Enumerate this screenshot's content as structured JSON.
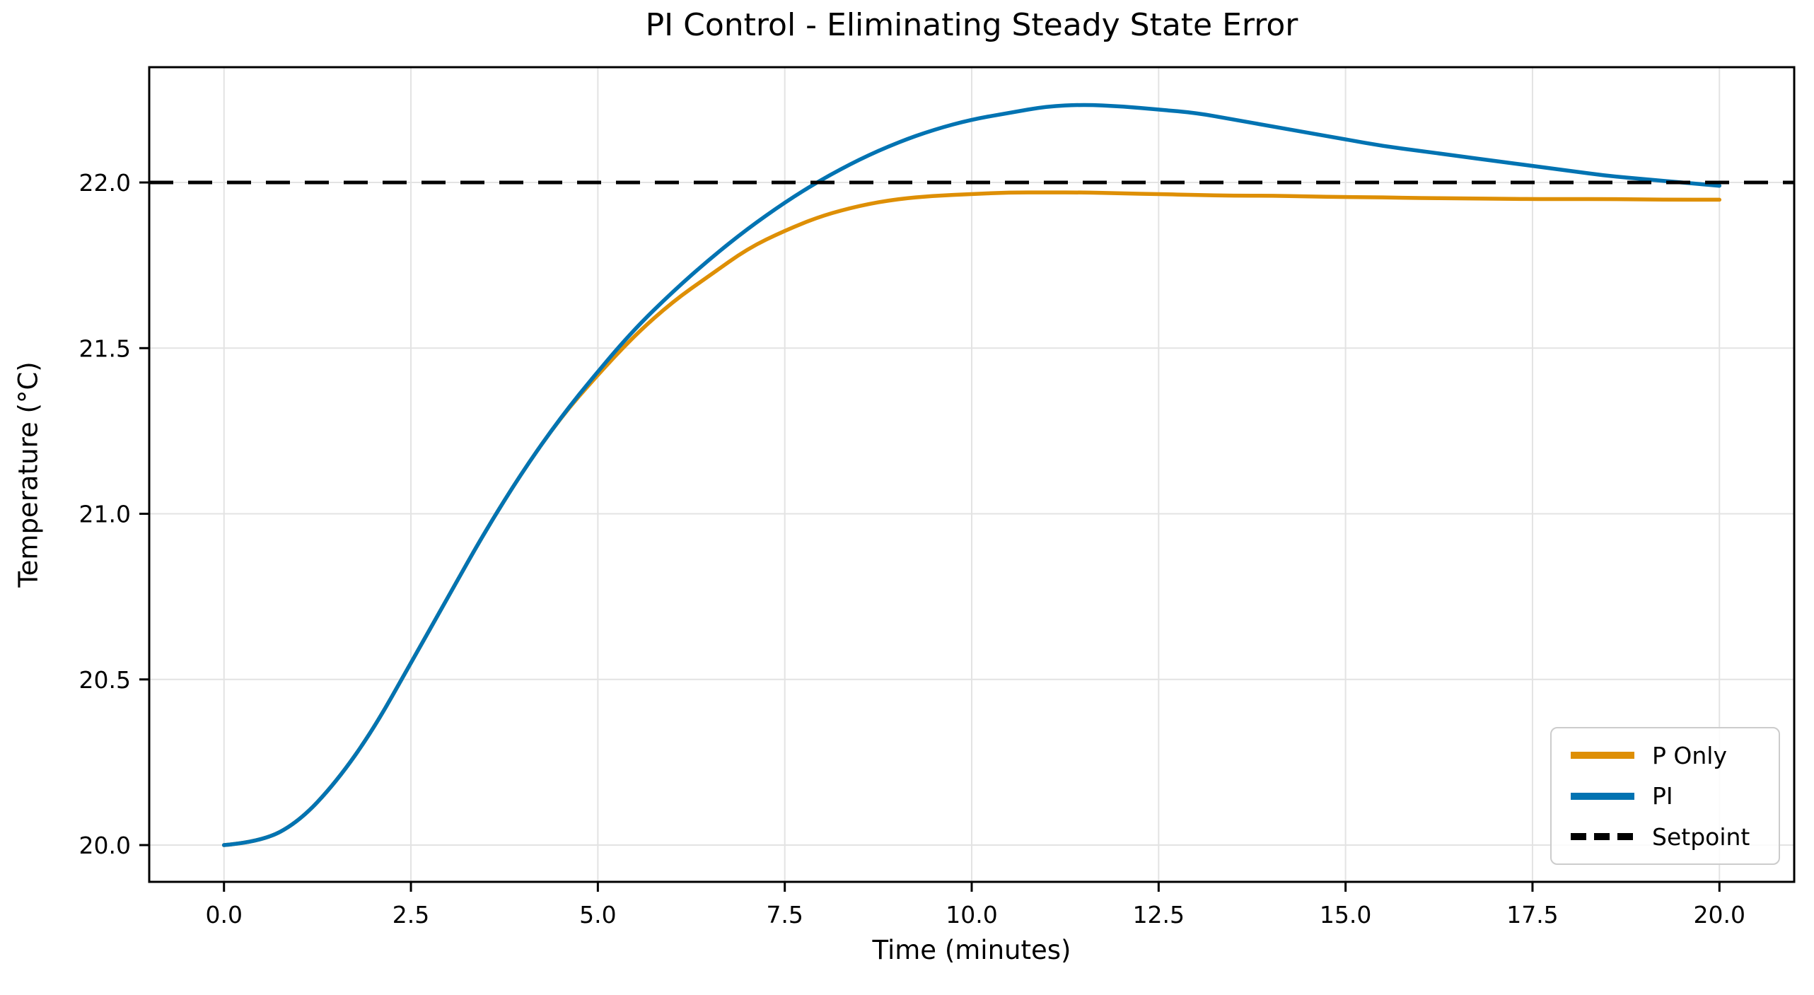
{
  "figure": {
    "title": "PI Control - Eliminating Steady State Error",
    "xlabel": "Time (minutes)",
    "ylabel": "Temperature (°C)"
  },
  "colors": {
    "p_only": "#DE8F05",
    "pi": "#0173B2",
    "setpoint": "#000000",
    "grid": "#E3E3E3",
    "spine": "#000000",
    "background": "#FFFFFF",
    "legend_border": "#CCCCCC"
  },
  "legend": {
    "position": "lower right",
    "items": [
      {
        "label": "P Only",
        "style": "solid"
      },
      {
        "label": "PI",
        "style": "solid"
      },
      {
        "label": "Setpoint",
        "style": "dashed"
      }
    ]
  },
  "chart_data": {
    "type": "line",
    "title": "PI Control - Eliminating Steady State Error",
    "xlabel": "Time (minutes)",
    "ylabel": "Temperature (°C)",
    "xlim": [
      -1,
      21
    ],
    "ylim": [
      19.889,
      22.348
    ],
    "xticks": [
      0,
      2.5,
      5,
      7.5,
      10,
      12.5,
      15,
      17.5,
      20
    ],
    "xtick_labels": [
      "0.0",
      "2.5",
      "5.0",
      "7.5",
      "10.0",
      "12.5",
      "15.0",
      "17.5",
      "20.0"
    ],
    "yticks": [
      20.0,
      20.5,
      21.0,
      21.5,
      22.0
    ],
    "ytick_labels": [
      "20.0",
      "20.5",
      "21.0",
      "21.5",
      "22.0"
    ],
    "grid": true,
    "legend_position": "lower right",
    "setpoint_value": 22.0,
    "x": [
      0,
      0.5,
      1,
      1.5,
      2,
      2.5,
      3,
      3.5,
      4,
      4.5,
      5,
      5.5,
      6,
      6.5,
      7,
      7.5,
      8,
      8.5,
      9,
      9.5,
      10,
      10.5,
      11,
      11.5,
      12,
      12.5,
      13,
      13.5,
      14,
      14.5,
      15,
      15.5,
      16,
      16.5,
      17,
      17.5,
      18,
      18.5,
      19,
      19.5,
      20
    ],
    "series": [
      {
        "name": "P Only",
        "color": "#DE8F05",
        "style": "solid",
        "values": [
          20.0,
          20.01,
          20.07,
          20.19,
          20.35,
          20.55,
          20.75,
          20.95,
          21.13,
          21.29,
          21.42,
          21.54,
          21.64,
          21.72,
          21.8,
          21.855,
          21.9,
          21.93,
          21.95,
          21.96,
          21.965,
          21.97,
          21.97,
          21.97,
          21.967,
          21.965,
          21.962,
          21.96,
          21.96,
          21.958,
          21.956,
          21.955,
          21.953,
          21.952,
          21.951,
          21.95,
          21.95,
          21.95,
          21.949,
          21.948,
          21.948
        ]
      },
      {
        "name": "PI",
        "color": "#0173B2",
        "style": "solid",
        "values": [
          20.0,
          20.01,
          20.07,
          20.19,
          20.35,
          20.55,
          20.75,
          20.95,
          21.13,
          21.29,
          21.43,
          21.56,
          21.67,
          21.77,
          21.86,
          21.94,
          22.01,
          22.07,
          22.12,
          22.16,
          22.19,
          22.21,
          22.23,
          22.235,
          22.23,
          22.22,
          22.21,
          22.19,
          22.17,
          22.15,
          22.13,
          22.11,
          22.095,
          22.08,
          22.065,
          22.05,
          22.035,
          22.02,
          22.01,
          22.0,
          21.99
        ]
      },
      {
        "name": "Setpoint",
        "color": "#000000",
        "style": "dashed",
        "constant": 22.0
      }
    ]
  }
}
